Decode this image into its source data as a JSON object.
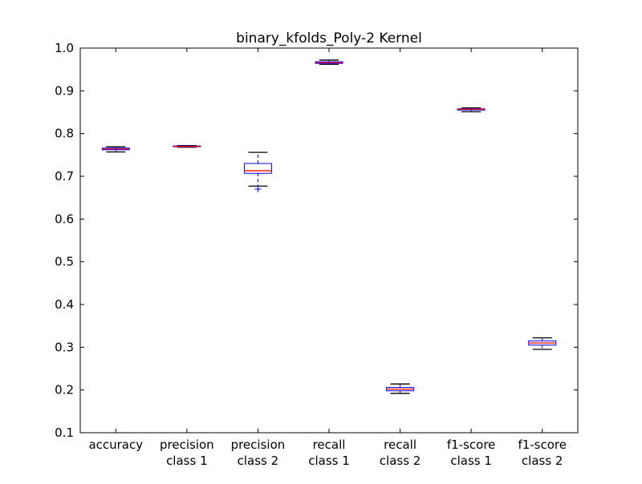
{
  "chart_data": {
    "type": "box",
    "title": "binary_kfolds_Poly-2 Kernel",
    "xlabel": "",
    "ylabel": "",
    "ylim": [
      0.1,
      1.0
    ],
    "yticks": [
      "0.1",
      "0.2",
      "0.3",
      "0.4",
      "0.5",
      "0.6",
      "0.7",
      "0.8",
      "0.9",
      "1.0"
    ],
    "grid": false,
    "categories": [
      [
        "accuracy"
      ],
      [
        "precision",
        "class 1"
      ],
      [
        "precision",
        "class 2"
      ],
      [
        "recall",
        "class 1"
      ],
      [
        "recall",
        "class 2"
      ],
      [
        "f1-score",
        "class 1"
      ],
      [
        "f1-score",
        "class 2"
      ]
    ],
    "boxes": [
      {
        "whisker_low": 0.757,
        "q1": 0.762,
        "median": 0.764,
        "q3": 0.766,
        "whisker_high": 0.769,
        "outliers": []
      },
      {
        "whisker_low": 0.768,
        "q1": 0.769,
        "median": 0.77,
        "q3": 0.771,
        "whisker_high": 0.772,
        "outliers": []
      },
      {
        "whisker_low": 0.677,
        "q1": 0.707,
        "median": 0.713,
        "q3": 0.73,
        "whisker_high": 0.756,
        "outliers": [
          0.67
        ]
      },
      {
        "whisker_low": 0.962,
        "q1": 0.964,
        "median": 0.966,
        "q3": 0.968,
        "whisker_high": 0.972,
        "outliers": []
      },
      {
        "whisker_low": 0.192,
        "q1": 0.198,
        "median": 0.202,
        "q3": 0.206,
        "whisker_high": 0.214,
        "outliers": []
      },
      {
        "whisker_low": 0.851,
        "q1": 0.855,
        "median": 0.857,
        "q3": 0.858,
        "whisker_high": 0.86,
        "outliers": []
      },
      {
        "whisker_low": 0.295,
        "q1": 0.305,
        "median": 0.31,
        "q3": 0.315,
        "whisker_high": 0.322,
        "outliers": []
      }
    ],
    "colors": {
      "box": "#0000ff",
      "median": "#ff0000",
      "whisker": "#0000ff",
      "cap": "#000000",
      "axes": "#000000"
    }
  }
}
